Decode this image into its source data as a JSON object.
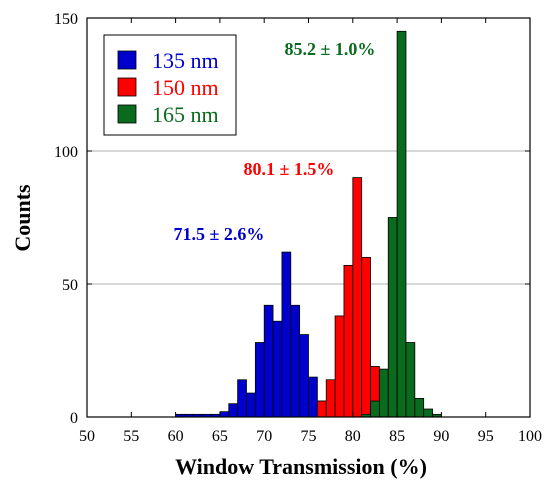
{
  "chart_data": {
    "type": "bar",
    "xlabel": "Window Transmission (%)",
    "ylabel": "Counts",
    "xlim": [
      50,
      100
    ],
    "ylim": [
      0,
      150
    ],
    "x_ticks": [
      50,
      55,
      60,
      65,
      70,
      75,
      80,
      85,
      90,
      95,
      100
    ],
    "y_ticks": [
      0,
      50,
      100,
      150
    ],
    "grid": "horizontal",
    "legend_position": "top-left",
    "bin_width": 1,
    "series": [
      {
        "name": "135 nm",
        "color": "#0000cc",
        "annotation": "71.5 ± 2.6%",
        "bins": [
          {
            "x": 60,
            "y": 1
          },
          {
            "x": 61,
            "y": 1
          },
          {
            "x": 62,
            "y": 1
          },
          {
            "x": 63,
            "y": 1
          },
          {
            "x": 64,
            "y": 1
          },
          {
            "x": 65,
            "y": 2
          },
          {
            "x": 66,
            "y": 5
          },
          {
            "x": 67,
            "y": 14
          },
          {
            "x": 68,
            "y": 9
          },
          {
            "x": 69,
            "y": 28
          },
          {
            "x": 70,
            "y": 42
          },
          {
            "x": 71,
            "y": 36
          },
          {
            "x": 72,
            "y": 62
          },
          {
            "x": 73,
            "y": 42
          },
          {
            "x": 74,
            "y": 31
          },
          {
            "x": 75,
            "y": 15
          },
          {
            "x": 76,
            "y": 6
          },
          {
            "x": 77,
            "y": 2
          }
        ]
      },
      {
        "name": "150 nm",
        "color": "#ff0000",
        "annotation": "80.1 ± 1.5%",
        "bins": [
          {
            "x": 76,
            "y": 6
          },
          {
            "x": 77,
            "y": 14
          },
          {
            "x": 78,
            "y": 38
          },
          {
            "x": 79,
            "y": 57
          },
          {
            "x": 80,
            "y": 90
          },
          {
            "x": 81,
            "y": 60
          },
          {
            "x": 82,
            "y": 19
          },
          {
            "x": 83,
            "y": 6
          }
        ]
      },
      {
        "name": "165 nm",
        "color": "#0a6b1e",
        "annotation": "85.2 ± 1.0%",
        "bins": [
          {
            "x": 81,
            "y": 1
          },
          {
            "x": 82,
            "y": 6
          },
          {
            "x": 83,
            "y": 18
          },
          {
            "x": 84,
            "y": 75
          },
          {
            "x": 85,
            "y": 145
          },
          {
            "x": 86,
            "y": 28
          },
          {
            "x": 87,
            "y": 7
          },
          {
            "x": 88,
            "y": 3
          },
          {
            "x": 89,
            "y": 1
          }
        ]
      }
    ]
  }
}
